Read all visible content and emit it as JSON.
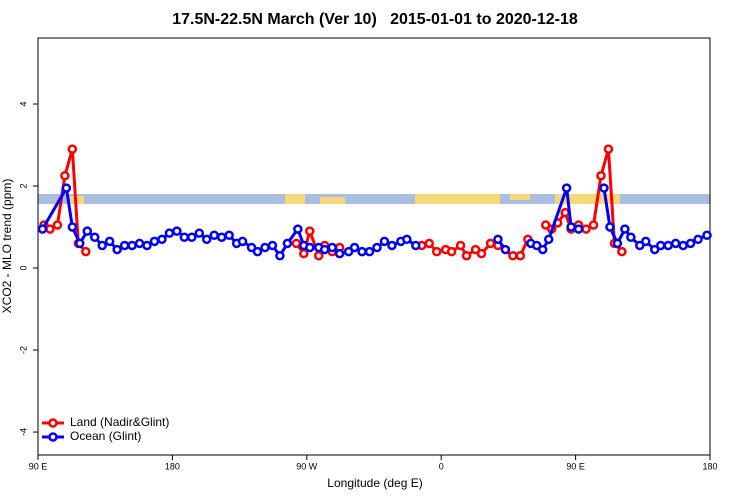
{
  "chart_data": {
    "type": "line",
    "title": "17.5N-22.5N March (Ver 10)   2015-01-01 to 2020-12-18",
    "xlabel": "Longitude (deg E)",
    "ylabel": "XCO2 - MLO trend (ppm)",
    "xlim": [
      90,
      540
    ],
    "ylim": [
      -4.56,
      5.61
    ],
    "xticks": [
      {
        "value": 90,
        "label": "90 E"
      },
      180,
      {
        "value": 270,
        "label": "90 W"
      },
      {
        "value": 360,
        "label": "0"
      },
      {
        "value": 450,
        "label": "90 E"
      },
      {
        "value": 540,
        "label": "180"
      }
    ],
    "yticks": [
      -4,
      -2,
      0,
      2,
      4
    ],
    "legend": "bottomleft",
    "series": [
      {
        "name": "Land (Nadir&Glint)",
        "color": "#ff0000",
        "x": [
          94,
          98,
          103,
          108,
          113,
          117,
          122,
          190,
          263,
          268,
          272,
          278,
          282,
          287,
          292,
          320,
          347,
          352,
          357,
          363,
          367,
          373,
          377,
          383,
          387,
          393,
          398,
          408,
          413,
          418,
          425,
          430,
          434,
          438,
          443,
          447,
          452,
          457,
          462,
          467,
          472,
          476,
          481
        ],
        "values": [
          1.05,
          0.95,
          1.05,
          2.25,
          2.9,
          0.6,
          0.4,
          null,
          0.6,
          0.35,
          0.9,
          0.3,
          0.55,
          0.4,
          0.5,
          null,
          0.55,
          0.6,
          0.4,
          0.45,
          0.4,
          0.55,
          0.3,
          0.45,
          0.35,
          0.6,
          0.55,
          0.3,
          0.3,
          0.7,
          null,
          1.05,
          0.95,
          1.1,
          1.35,
          0.95,
          1.05,
          0.95,
          1.05,
          2.25,
          2.9,
          0.6,
          0.4
        ]
      },
      {
        "name": "Ocean (Glint)",
        "color": "#0000ff",
        "x": [
          93,
          109,
          113,
          118,
          123,
          128,
          133,
          138,
          143,
          148,
          153,
          158,
          163,
          168,
          173,
          178,
          183,
          188,
          193,
          198,
          203,
          208,
          213,
          218,
          223,
          227,
          233,
          237,
          242,
          247,
          252,
          257,
          264,
          268,
          272,
          278,
          282,
          287,
          292,
          298,
          302,
          307,
          312,
          317,
          322,
          327,
          333,
          337,
          343,
          370,
          398,
          403,
          412,
          420,
          424,
          428,
          432,
          444,
          447,
          452,
          460,
          469,
          473,
          478,
          483,
          487,
          493,
          497,
          503,
          507,
          512,
          517,
          522,
          527,
          532,
          538
        ],
        "values": [
          0.95,
          1.95,
          1.0,
          0.6,
          0.9,
          0.75,
          0.55,
          0.65,
          0.45,
          0.55,
          0.55,
          0.6,
          0.55,
          0.65,
          0.7,
          0.85,
          0.9,
          0.75,
          0.75,
          0.85,
          0.7,
          0.8,
          0.75,
          0.8,
          0.6,
          0.65,
          0.5,
          0.4,
          0.5,
          0.55,
          0.3,
          0.6,
          0.95,
          0.55,
          0.5,
          0.5,
          0.45,
          0.5,
          0.35,
          0.4,
          0.5,
          0.4,
          0.4,
          0.5,
          0.65,
          0.55,
          0.65,
          0.7,
          0.55,
          null,
          0.7,
          0.45,
          null,
          0.6,
          0.55,
          0.45,
          0.7,
          1.95,
          1.0,
          0.95,
          null,
          1.95,
          1.0,
          0.6,
          0.95,
          0.75,
          0.55,
          0.65,
          0.45,
          0.55,
          0.55,
          0.6,
          0.55,
          0.6,
          0.7,
          0.8
        ]
      }
    ]
  }
}
